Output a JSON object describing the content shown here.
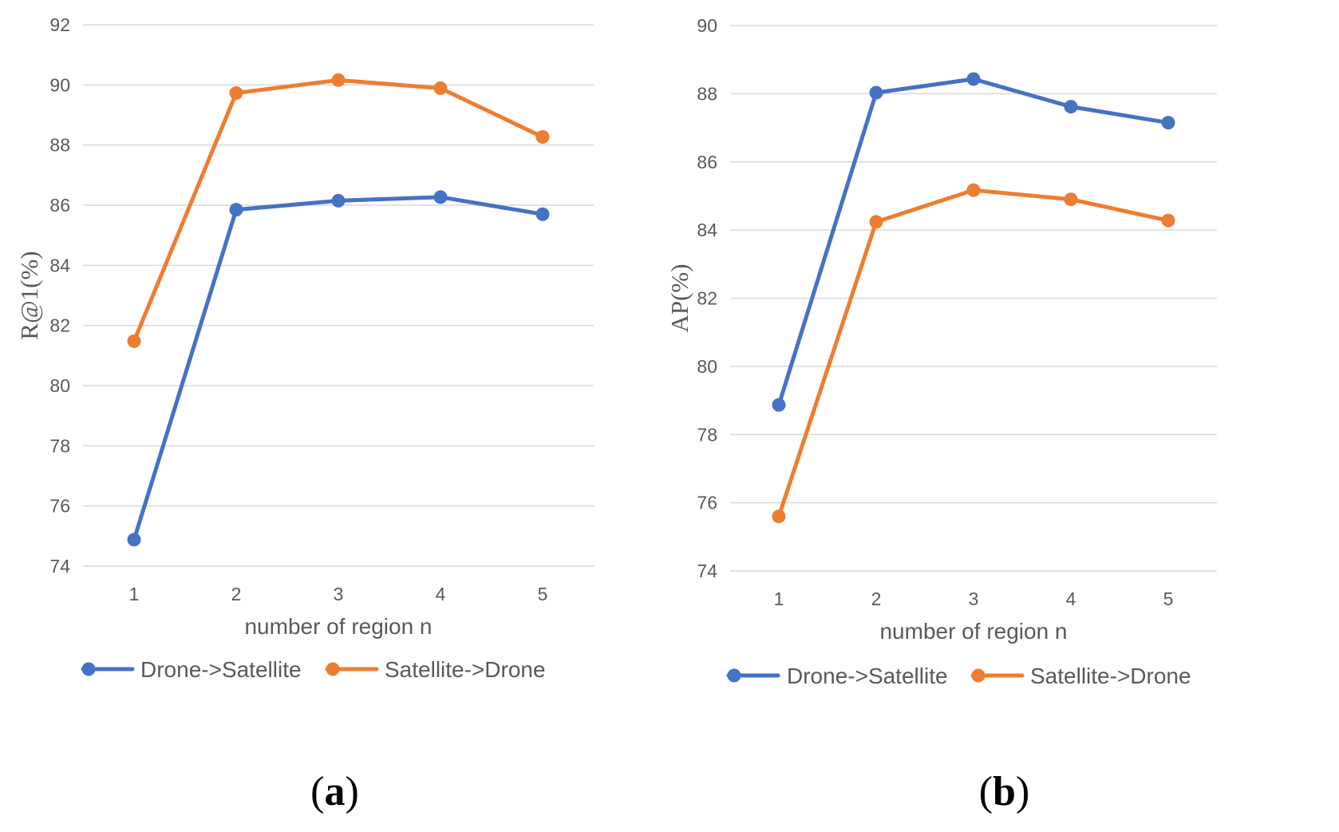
{
  "colors": {
    "drone_to_satellite": "#4472C4",
    "satellite_to_drone": "#ED7D31",
    "gridline": "#D9D9D9",
    "text": "#595959"
  },
  "chart_data": [
    {
      "type": "line",
      "panel_label": "a",
      "caption": "(a)",
      "categories": [
        "1",
        "2",
        "3",
        "4",
        "5"
      ],
      "xlabel": "number of region n",
      "ylabel": "R@1(%)",
      "ylim": [
        74,
        92
      ],
      "ytick_step": 2,
      "grid": true,
      "legend_position": "bottom",
      "series": [
        {
          "name": "Drone->Satellite",
          "color": "#4472C4",
          "values": [
            74.88,
            85.85,
            86.15,
            86.27,
            85.7
          ]
        },
        {
          "name": "Satellite->Drone",
          "color": "#ED7D31",
          "values": [
            81.48,
            89.73,
            90.16,
            89.89,
            88.27
          ]
        }
      ]
    },
    {
      "type": "line",
      "panel_label": "b",
      "caption": "(b)",
      "categories": [
        "1",
        "2",
        "3",
        "4",
        "5"
      ],
      "xlabel": "number of region n",
      "ylabel": "AP(%)",
      "ylim": [
        74,
        90
      ],
      "ytick_step": 2,
      "grid": true,
      "legend_position": "bottom",
      "series": [
        {
          "name": "Drone->Satellite",
          "color": "#4472C4",
          "values": [
            78.87,
            88.03,
            88.43,
            87.62,
            87.15
          ]
        },
        {
          "name": "Satellite->Drone",
          "color": "#ED7D31",
          "values": [
            75.6,
            84.24,
            85.17,
            84.9,
            84.28
          ]
        }
      ]
    }
  ]
}
